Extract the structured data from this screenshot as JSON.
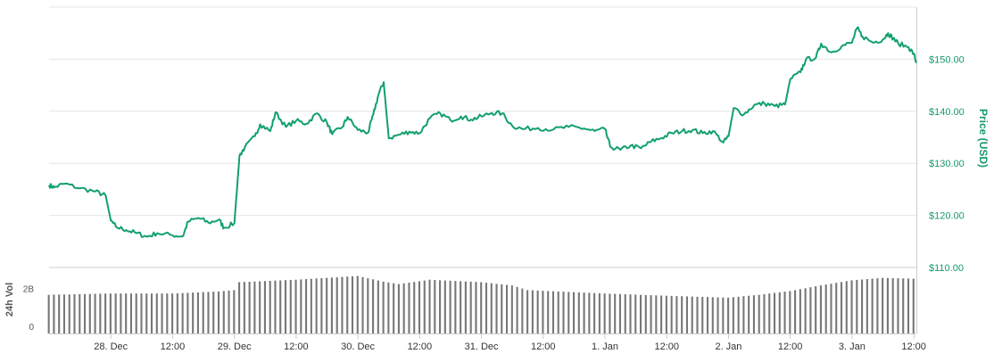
{
  "chart_data": [
    {
      "type": "line",
      "name": "price",
      "title": "",
      "ylabel": "Price (USD)",
      "y_ticks": [
        "$110.00",
        "$120.00",
        "$130.00",
        "$140.00",
        "$150.00"
      ],
      "ylim": [
        110,
        160
      ],
      "line_color": "#12a06c",
      "grid": true,
      "x_start": "27 Dec 12:00",
      "x_end": "3 Jan 12:30",
      "points": [
        [
          "27 Dec 12:00",
          125.8
        ],
        [
          "27 Dec 13:00",
          125.4
        ],
        [
          "27 Dec 15:00",
          126.1
        ],
        [
          "27 Dec 18:00",
          125.2
        ],
        [
          "27 Dec 21:00",
          124.6
        ],
        [
          "27 Dec 23:00",
          123.8
        ],
        [
          "28 Dec 00:00",
          119.0
        ],
        [
          "28 Dec 01:00",
          117.8
        ],
        [
          "28 Dec 03:00",
          117.2
        ],
        [
          "28 Dec 05:00",
          116.6
        ],
        [
          "28 Dec 07:00",
          115.9
        ],
        [
          "28 Dec 09:00",
          116.6
        ],
        [
          "28 Dec 12:00",
          116.2
        ],
        [
          "28 Dec 14:00",
          116.0
        ],
        [
          "28 Dec 15:00",
          118.8
        ],
        [
          "28 Dec 17:00",
          119.5
        ],
        [
          "28 Dec 19:00",
          118.6
        ],
        [
          "28 Dec 21:00",
          119.2
        ],
        [
          "28 Dec 22:00",
          117.6
        ],
        [
          "29 Dec 00:00",
          118.5
        ],
        [
          "29 Dec 01:00",
          131.5
        ],
        [
          "29 Dec 02:00",
          133.0
        ],
        [
          "29 Dec 04:00",
          135.2
        ],
        [
          "29 Dec 05:00",
          137.5
        ],
        [
          "29 Dec 07:00",
          136.2
        ],
        [
          "29 Dec 08:00",
          139.8
        ],
        [
          "29 Dec 10:00",
          137.0
        ],
        [
          "29 Dec 12:00",
          138.2
        ],
        [
          "29 Dec 14:00",
          137.6
        ],
        [
          "29 Dec 16:00",
          139.6
        ],
        [
          "29 Dec 18:00",
          137.8
        ],
        [
          "29 Dec 19:00",
          135.6
        ],
        [
          "29 Dec 21:00",
          137.0
        ],
        [
          "29 Dec 22:00",
          138.9
        ],
        [
          "30 Dec 00:00",
          136.4
        ],
        [
          "30 Dec 02:00",
          135.9
        ],
        [
          "30 Dec 03:00",
          139.4
        ],
        [
          "30 Dec 04:00",
          143.2
        ],
        [
          "30 Dec 05:00",
          145.6
        ],
        [
          "30 Dec 06:00",
          134.8
        ],
        [
          "30 Dec 08:00",
          135.5
        ],
        [
          "30 Dec 10:00",
          136.1
        ],
        [
          "30 Dec 12:00",
          135.8
        ],
        [
          "30 Dec 14:00",
          138.7
        ],
        [
          "30 Dec 16:00",
          139.6
        ],
        [
          "30 Dec 18:00",
          138.3
        ],
        [
          "30 Dec 20:00",
          139.0
        ],
        [
          "30 Dec 22:00",
          138.4
        ],
        [
          "31 Dec 00:00",
          139.0
        ],
        [
          "31 Dec 02:00",
          139.7
        ],
        [
          "31 Dec 04:00",
          139.6
        ],
        [
          "31 Dec 06:00",
          137.2
        ],
        [
          "31 Dec 08:00",
          136.6
        ],
        [
          "31 Dec 11:00",
          136.8
        ],
        [
          "31 Dec 14:00",
          136.5
        ],
        [
          "31 Dec 17:00",
          137.0
        ],
        [
          "31 Dec 20:00",
          136.7
        ],
        [
          "31 Dec 22:00",
          136.2
        ],
        [
          "1 Jan 00:00",
          136.6
        ],
        [
          "1 Jan 01:00",
          133.2
        ],
        [
          "1 Jan 03:00",
          132.6
        ],
        [
          "1 Jan 05:00",
          133.4
        ],
        [
          "1 Jan 07:00",
          132.9
        ],
        [
          "1 Jan 09:00",
          134.2
        ],
        [
          "1 Jan 11:00",
          134.9
        ],
        [
          "1 Jan 13:00",
          135.8
        ],
        [
          "1 Jan 15:00",
          136.2
        ],
        [
          "1 Jan 17:00",
          136.4
        ],
        [
          "1 Jan 19:00",
          135.8
        ],
        [
          "1 Jan 21:00",
          136.2
        ],
        [
          "1 Jan 23:00",
          134.0
        ],
        [
          "2 Jan 00:00",
          135.2
        ],
        [
          "2 Jan 01:00",
          140.6
        ],
        [
          "2 Jan 03:00",
          139.4
        ],
        [
          "2 Jan 05:00",
          141.2
        ],
        [
          "2 Jan 07:00",
          141.5
        ],
        [
          "2 Jan 09:00",
          141.0
        ],
        [
          "2 Jan 11:00",
          141.3
        ],
        [
          "2 Jan 12:00",
          146.2
        ],
        [
          "2 Jan 14:00",
          147.5
        ],
        [
          "2 Jan 15:00",
          149.9
        ],
        [
          "2 Jan 17:00",
          150.3
        ],
        [
          "2 Jan 18:00",
          153.0
        ],
        [
          "2 Jan 20:00",
          151.3
        ],
        [
          "2 Jan 22:00",
          152.5
        ],
        [
          "3 Jan 00:00",
          153.2
        ],
        [
          "3 Jan 01:00",
          156.0
        ],
        [
          "3 Jan 02:00",
          154.4
        ],
        [
          "3 Jan 04:00",
          153.2
        ],
        [
          "3 Jan 06:00",
          153.8
        ],
        [
          "3 Jan 07:00",
          155.0
        ],
        [
          "3 Jan 08:00",
          154.0
        ],
        [
          "3 Jan 09:00",
          153.0
        ],
        [
          "3 Jan 11:00",
          152.3
        ],
        [
          "3 Jan 12:00",
          151.0
        ],
        [
          "3 Jan 12:30",
          149.3
        ]
      ]
    },
    {
      "type": "bar",
      "name": "volume",
      "ylabel": "24h Vol",
      "y_ticks": [
        {
          "label": "2B",
          "value": 2
        },
        {
          "label": "0",
          "value": 0
        }
      ],
      "y_unit": "billion USD",
      "ylim": [
        0,
        3.5
      ],
      "bar_color": "#777777",
      "bars_per_day": 24,
      "keyframes": [
        [
          "27 Dec 12:00",
          2.05
        ],
        [
          "28 Dec 00:00",
          2.12
        ],
        [
          "28 Dec 12:00",
          2.12
        ],
        [
          "28 Dec 21:00",
          2.23
        ],
        [
          "29 Dec 00:00",
          2.3
        ],
        [
          "29 Dec 01:00",
          2.72
        ],
        [
          "29 Dec 12:00",
          2.85
        ],
        [
          "30 Dec 00:00",
          3.05
        ],
        [
          "30 Dec 05:00",
          2.75
        ],
        [
          "30 Dec 08:00",
          2.62
        ],
        [
          "30 Dec 14:00",
          2.85
        ],
        [
          "31 Dec 00:00",
          2.72
        ],
        [
          "31 Dec 06:00",
          2.55
        ],
        [
          "31 Dec 09:00",
          2.3
        ],
        [
          "1 Jan 00:00",
          2.12
        ],
        [
          "1 Jan 12:00",
          2.0
        ],
        [
          "2 Jan 00:00",
          1.9
        ],
        [
          "2 Jan 06:00",
          2.05
        ],
        [
          "2 Jan 12:00",
          2.25
        ],
        [
          "2 Jan 18:00",
          2.55
        ],
        [
          "3 Jan 00:00",
          2.82
        ],
        [
          "3 Jan 06:00",
          2.95
        ],
        [
          "3 Jan 12:30",
          2.9
        ]
      ]
    }
  ],
  "x_axis": {
    "ticks": [
      {
        "label": "28. Dec",
        "at": "28 Dec 00:00"
      },
      {
        "label": "12:00",
        "at": "28 Dec 12:00"
      },
      {
        "label": "29. Dec",
        "at": "29 Dec 00:00"
      },
      {
        "label": "12:00",
        "at": "29 Dec 12:00"
      },
      {
        "label": "30. Dec",
        "at": "30 Dec 00:00"
      },
      {
        "label": "12:00",
        "at": "30 Dec 12:00"
      },
      {
        "label": "31. Dec",
        "at": "31 Dec 00:00"
      },
      {
        "label": "12:00",
        "at": "31 Dec 12:00"
      },
      {
        "label": "1. Jan",
        "at": "1 Jan 00:00"
      },
      {
        "label": "12:00",
        "at": "1 Jan 12:00"
      },
      {
        "label": "2. Jan",
        "at": "2 Jan 00:00"
      },
      {
        "label": "12:00",
        "at": "2 Jan 12:00"
      },
      {
        "label": "3. Jan",
        "at": "3 Jan 00:00"
      },
      {
        "label": "12:00",
        "at": "3 Jan 12:00"
      }
    ]
  }
}
